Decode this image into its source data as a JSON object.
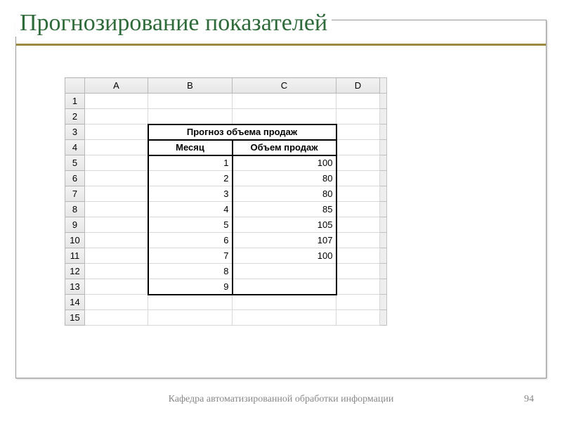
{
  "slide": {
    "title": "Прогнозирование  показателей",
    "footer": "Кафедра автоматизированной обработки информации",
    "page_number": "94",
    "accent_color": "#9b8a3f",
    "title_color": "#2f6b3a"
  },
  "spreadsheet": {
    "columns": [
      "A",
      "B",
      "C",
      "D"
    ],
    "row_numbers": [
      "1",
      "2",
      "3",
      "4",
      "5",
      "6",
      "7",
      "8",
      "9",
      "10",
      "11",
      "12",
      "13",
      "14",
      "15"
    ],
    "merged_title": "Прогноз объема продаж",
    "header_month": "Месяц",
    "header_volume": "Объем продаж",
    "rows": [
      {
        "month": "1",
        "volume": "100"
      },
      {
        "month": "2",
        "volume": "80"
      },
      {
        "month": "3",
        "volume": "80"
      },
      {
        "month": "4",
        "volume": "85"
      },
      {
        "month": "5",
        "volume": "105"
      },
      {
        "month": "6",
        "volume": "107"
      },
      {
        "month": "7",
        "volume": "100"
      },
      {
        "month": "8",
        "volume": ""
      },
      {
        "month": "9",
        "volume": ""
      }
    ]
  }
}
